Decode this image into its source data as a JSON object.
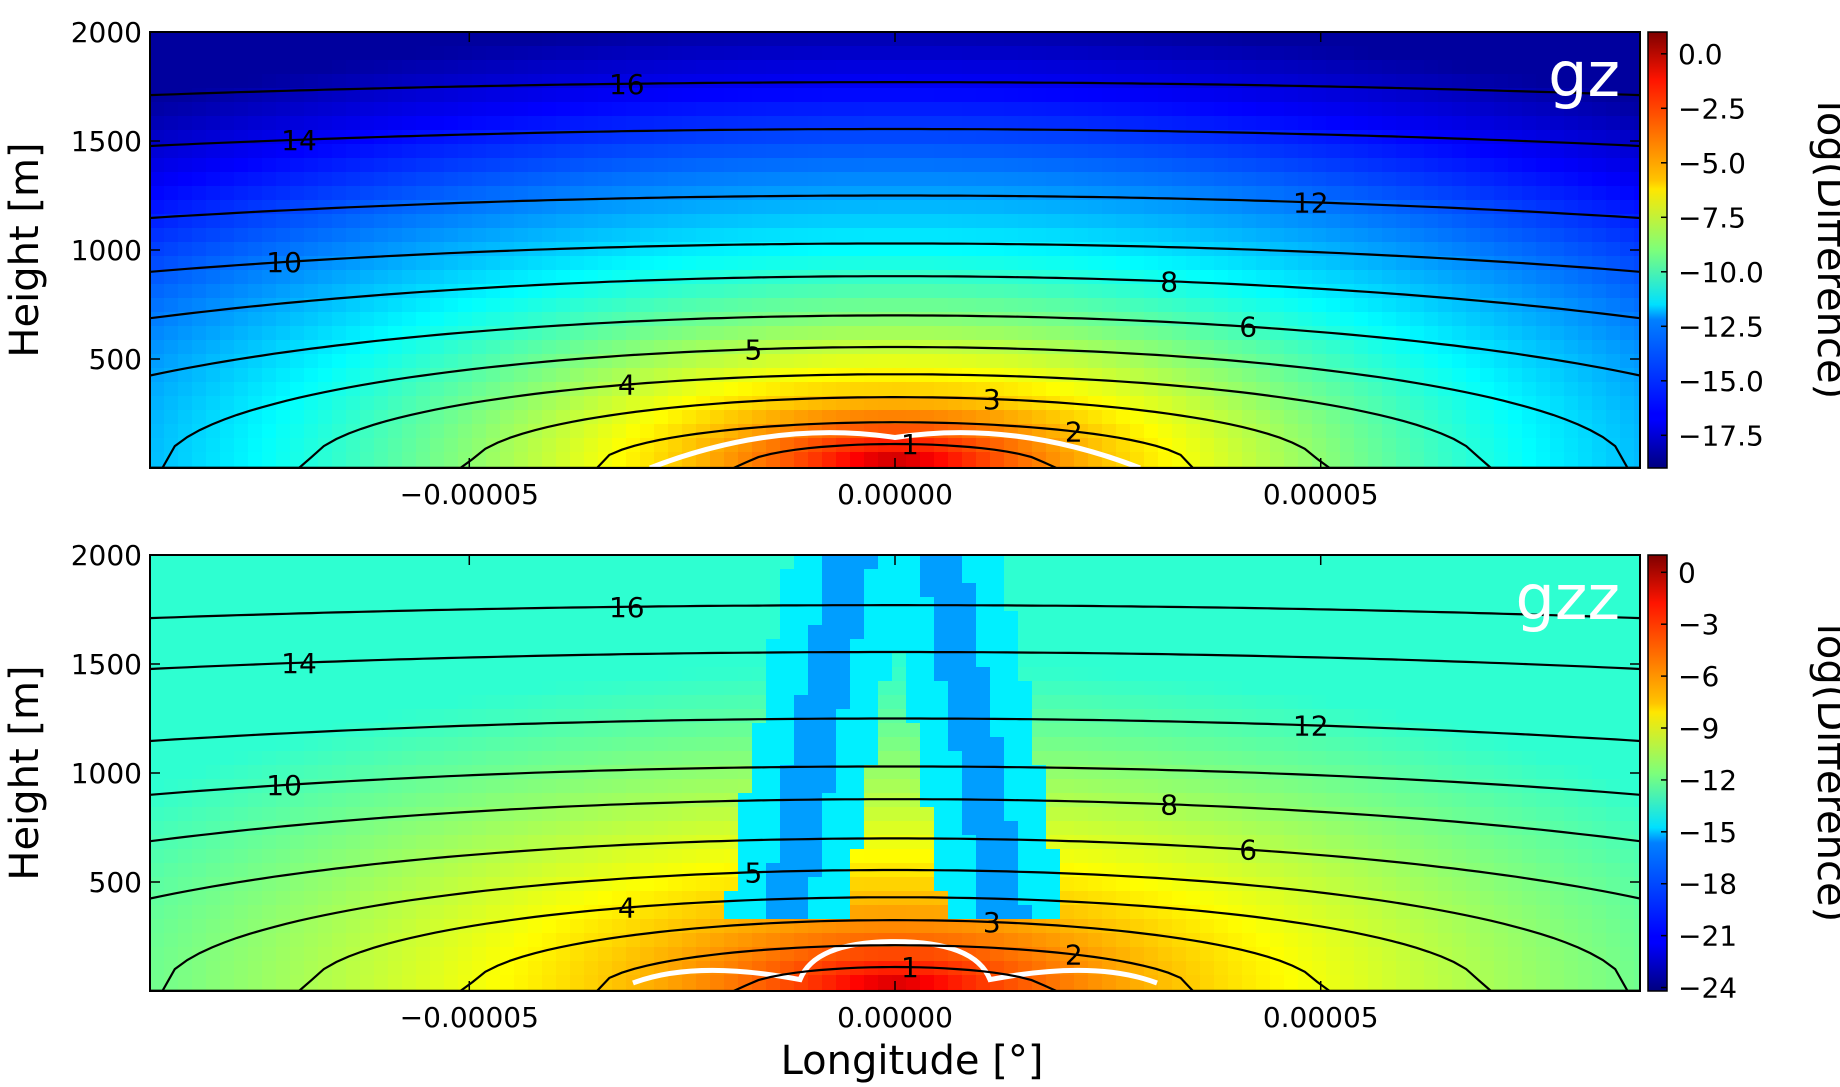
{
  "chart_data": [
    {
      "type": "heatmap",
      "panel_label": "gz",
      "xlabel": "",
      "ylabel": "Height [m]",
      "xlim": [
        -8.75e-05,
        8.75e-05
      ],
      "ylim": [
        0,
        2000
      ],
      "x_ticks": [
        -5e-05,
        0.0,
        5e-05
      ],
      "x_tick_labels": [
        "−0.00005",
        "0.00000",
        "0.00005"
      ],
      "y_ticks": [
        500,
        1000,
        1500,
        2000
      ],
      "y_tick_labels": [
        "500",
        "1000",
        "1500",
        "2000"
      ],
      "colorbar": {
        "label": "log(Difference)",
        "range": [
          -19,
          1
        ],
        "ticks": [
          0.0,
          -2.5,
          -5.0,
          -7.5,
          -10.0,
          -12.5,
          -15.0,
          -17.5
        ],
        "tick_labels": [
          "0.0",
          "−2.5",
          "−5.0",
          "−7.5",
          "−10.0",
          "−12.5",
          "−15.0",
          "−17.5"
        ]
      },
      "contours": [
        {
          "label": "1",
          "apex_height": 110,
          "half_width": 1.8e-05
        },
        {
          "label": "2",
          "apex_height": 210,
          "half_width": 3.5e-05
        },
        {
          "label": "3",
          "apex_height": 325,
          "half_width": 5e-05
        },
        {
          "label": "4",
          "apex_height": 430,
          "half_width": 6.9e-05
        },
        {
          "label": "5",
          "apex_height": 555,
          "half_width": 8.6e-05
        },
        {
          "label": "6",
          "apex_height": 700,
          "half_width": 0.00011
        },
        {
          "label": "8",
          "apex_height": 880,
          "half_width": 0.00014
        },
        {
          "label": "10",
          "apex_height": 1030,
          "half_width": 0.00018
        },
        {
          "label": "12",
          "apex_height": 1250,
          "half_width": 0.00022
        },
        {
          "label": "14",
          "apex_height": 1555,
          "half_width": 0.00028
        },
        {
          "label": "16",
          "apex_height": 1770,
          "half_width": 0.00034
        }
      ]
    },
    {
      "type": "heatmap",
      "panel_label": "gzz",
      "xlabel": "Longitude [°]",
      "ylabel": "Height [m]",
      "xlim": [
        -8.75e-05,
        8.75e-05
      ],
      "ylim": [
        0,
        2000
      ],
      "x_ticks": [
        -5e-05,
        0.0,
        5e-05
      ],
      "x_tick_labels": [
        "−0.00005",
        "0.00000",
        "0.00005"
      ],
      "y_ticks": [
        500,
        1000,
        1500,
        2000
      ],
      "y_tick_labels": [
        "500",
        "1000",
        "1500",
        "2000"
      ],
      "colorbar": {
        "label": "log(Difference)",
        "range": [
          -24.2,
          1
        ],
        "ticks": [
          0,
          -3,
          -6,
          -9,
          -12,
          -15,
          -18,
          -21,
          -24
        ],
        "tick_labels": [
          "0",
          "−3",
          "−6",
          "−9",
          "−12",
          "−15",
          "−18",
          "−21",
          "−24"
        ]
      },
      "contours": [
        {
          "label": "1",
          "apex_height": 110,
          "half_width": 1.8e-05
        },
        {
          "label": "2",
          "apex_height": 210,
          "half_width": 3.5e-05
        },
        {
          "label": "3",
          "apex_height": 325,
          "half_width": 5e-05
        },
        {
          "label": "4",
          "apex_height": 430,
          "half_width": 6.9e-05
        },
        {
          "label": "5",
          "apex_height": 555,
          "half_width": 8.6e-05
        },
        {
          "label": "6",
          "apex_height": 700,
          "half_width": 0.00011
        },
        {
          "label": "8",
          "apex_height": 880,
          "half_width": 0.00014
        },
        {
          "label": "10",
          "apex_height": 1030,
          "half_width": 0.00018
        },
        {
          "label": "12",
          "apex_height": 1250,
          "half_width": 0.00022
        },
        {
          "label": "14",
          "apex_height": 1555,
          "half_width": 0.00028
        },
        {
          "label": "16",
          "apex_height": 1770,
          "half_width": 0.00034
        }
      ]
    }
  ]
}
